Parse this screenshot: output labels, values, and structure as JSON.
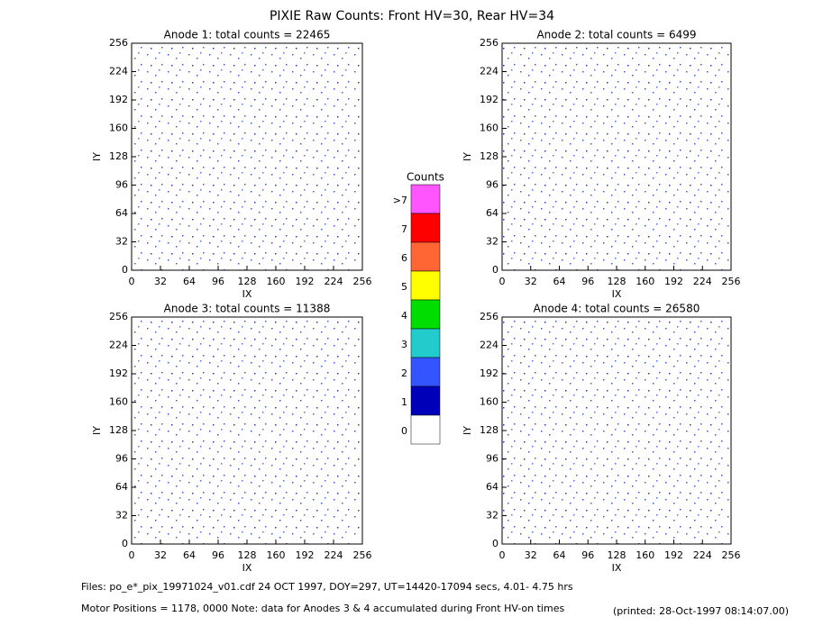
{
  "title": "PIXIE Raw Counts:  Front HV=30, Rear HV=34",
  "chart_data": [
    {
      "type": "heatmap",
      "title": "Anode 1: total counts = 22465",
      "xlabel": "IX",
      "ylabel": "IY",
      "xlim": [
        0,
        256
      ],
      "xticks": [
        0,
        32,
        64,
        96,
        128,
        160,
        192,
        224,
        256
      ],
      "ylim": [
        0,
        256
      ],
      "yticks": [
        0,
        32,
        64,
        96,
        128,
        160,
        192,
        224,
        256
      ]
    },
    {
      "type": "heatmap",
      "title": "Anode 2: total counts = 6499",
      "xlabel": "IX",
      "ylabel": "IY",
      "xlim": [
        0,
        256
      ],
      "xticks": [
        0,
        32,
        64,
        96,
        128,
        160,
        192,
        224,
        256
      ],
      "ylim": [
        0,
        256
      ],
      "yticks": [
        0,
        32,
        64,
        96,
        128,
        160,
        192,
        224,
        256
      ]
    },
    {
      "type": "heatmap",
      "title": "Anode 3: total counts = 11388",
      "xlabel": "IX",
      "ylabel": "IY",
      "xlim": [
        0,
        256
      ],
      "xticks": [
        0,
        32,
        64,
        96,
        128,
        160,
        192,
        224,
        256
      ],
      "ylim": [
        0,
        256
      ],
      "yticks": [
        0,
        32,
        64,
        96,
        128,
        160,
        192,
        224,
        256
      ]
    },
    {
      "type": "heatmap",
      "title": "Anode 4: total counts = 26580",
      "xlabel": "IX",
      "ylabel": "IY",
      "xlim": [
        0,
        256
      ],
      "xticks": [
        0,
        32,
        64,
        96,
        128,
        160,
        192,
        224,
        256
      ],
      "ylim": [
        0,
        256
      ],
      "yticks": [
        0,
        32,
        64,
        96,
        128,
        160,
        192,
        224,
        256
      ]
    }
  ],
  "colorbar": {
    "title": "Counts",
    "levels": [
      {
        "label": ">7",
        "color": "#ff55ff"
      },
      {
        "label": "7",
        "color": "#ff0000"
      },
      {
        "label": "6",
        "color": "#ff6633"
      },
      {
        "label": "5",
        "color": "#ffff00"
      },
      {
        "label": "4",
        "color": "#00dd00"
      },
      {
        "label": "3",
        "color": "#22cccc"
      },
      {
        "label": "2",
        "color": "#3355ff"
      },
      {
        "label": "1",
        "color": "#0000bb"
      },
      {
        "label": "0",
        "color": "#ffffff"
      }
    ]
  },
  "footer": {
    "files": "Files: po_e*_pix_19971024_v01.cdf    24 OCT 1997, DOY=297, UT=14420-17094 secs,  4.01- 4.75 hrs",
    "motor": "Motor Positions = 1178, 0000    Note: data for Anodes 3 & 4 accumulated during Front HV-on times",
    "printed": "(printed: 28-Oct-1997 08:14:07.00)"
  }
}
